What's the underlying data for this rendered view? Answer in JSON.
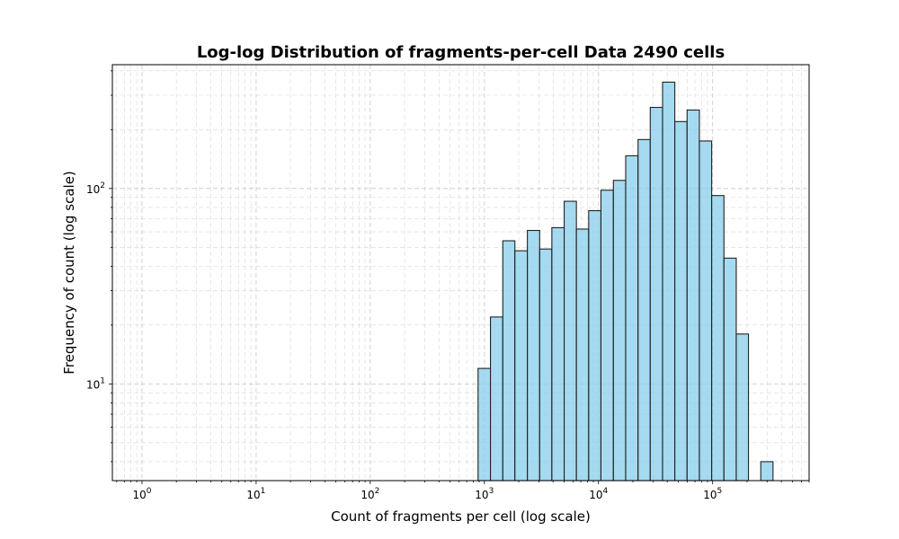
{
  "chart_data": {
    "type": "bar",
    "title": "Log-log Distribution of fragments-per-cell Data 2490 cells",
    "xlabel": "Count of fragments per cell (log scale)",
    "ylabel": "Frequency of count (log scale)",
    "x_scale": "log",
    "y_scale": "log",
    "xlim": [
      0.55,
      700000
    ],
    "ylim": [
      3.2,
      430
    ],
    "grid": true,
    "x_ticks": [
      {
        "base": "10",
        "exp": "0",
        "value": 1
      },
      {
        "base": "10",
        "exp": "1",
        "value": 10
      },
      {
        "base": "10",
        "exp": "2",
        "value": 100
      },
      {
        "base": "10",
        "exp": "3",
        "value": 1000
      },
      {
        "base": "10",
        "exp": "4",
        "value": 10000
      },
      {
        "base": "10",
        "exp": "5",
        "value": 100000
      }
    ],
    "y_ticks": [
      {
        "base": "10",
        "exp": "1",
        "value": 10
      },
      {
        "base": "10",
        "exp": "2",
        "value": 100
      }
    ],
    "bar_color": "#87CEEB",
    "edge_color": "#222222",
    "bins": {
      "edges": [
        880,
        1130,
        1450,
        1850,
        2380,
        3050,
        3900,
        5000,
        6400,
        8200,
        10500,
        13500,
        17300,
        22200,
        28400,
        36400,
        46600,
        59700,
        76500,
        98000,
        125600,
        161000,
        206000,
        264000,
        338000
      ],
      "counts": [
        12,
        22,
        54,
        48,
        61,
        49,
        63,
        86,
        62,
        77,
        98,
        110,
        147,
        178,
        260,
        350,
        220,
        252,
        175,
        92,
        44,
        18,
        0,
        4
      ]
    }
  }
}
